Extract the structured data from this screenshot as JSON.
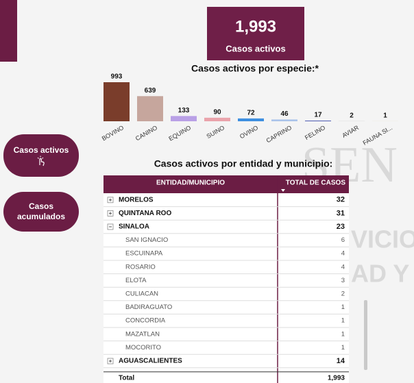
{
  "header": {
    "kpi_value": "1,993",
    "kpi_label": "Casos activos"
  },
  "buttons": [
    "Casos activos",
    "Casos acumulados"
  ],
  "chart_data": {
    "type": "bar",
    "title": "Casos activos por especie:*",
    "categories": [
      "BOVINO",
      "CANINO",
      "EQUINO",
      "SUINO",
      "OVINO",
      "CAPRINO",
      "FELINO",
      "AVIAR",
      "FAUNA SI..."
    ],
    "values": [
      993,
      639,
      133,
      90,
      72,
      46,
      17,
      2,
      1
    ],
    "colors": [
      "#7a3d2b",
      "#c6a69d",
      "#b9a0e6",
      "#eaa3ab",
      "#3d8fe0",
      "#aac3ea",
      "#4a58b0",
      "#9a9a9a",
      "#c9a36b"
    ]
  },
  "table": {
    "title": "Casos activos por entidad y municipio:",
    "columns": [
      "ENTIDAD/MUNICIPIO",
      "TOTAL DE CASOS"
    ],
    "rows": [
      {
        "name": "MORELOS",
        "value": 32
      },
      {
        "name": "QUINTANA ROO",
        "value": 31
      },
      {
        "name": "SINALOA",
        "value": 23,
        "children": [
          {
            "name": "SAN IGNACIO",
            "value": 6
          },
          {
            "name": "ESCUINAPA",
            "value": 4
          },
          {
            "name": "ROSARIO",
            "value": 4
          },
          {
            "name": "ELOTA",
            "value": 3
          },
          {
            "name": "CULIACAN",
            "value": 2
          },
          {
            "name": "BADIRAGUATO",
            "value": 1
          },
          {
            "name": "CONCORDIA",
            "value": 1
          },
          {
            "name": "MAZATLAN",
            "value": 1
          },
          {
            "name": "MOCORITO",
            "value": 1
          }
        ]
      },
      {
        "name": "AGUASCALIENTES",
        "value": 14
      }
    ],
    "total": [
      "Total",
      "1,993"
    ]
  },
  "watermark": [
    "SEN",
    "VICIO",
    "AD Y"
  ]
}
